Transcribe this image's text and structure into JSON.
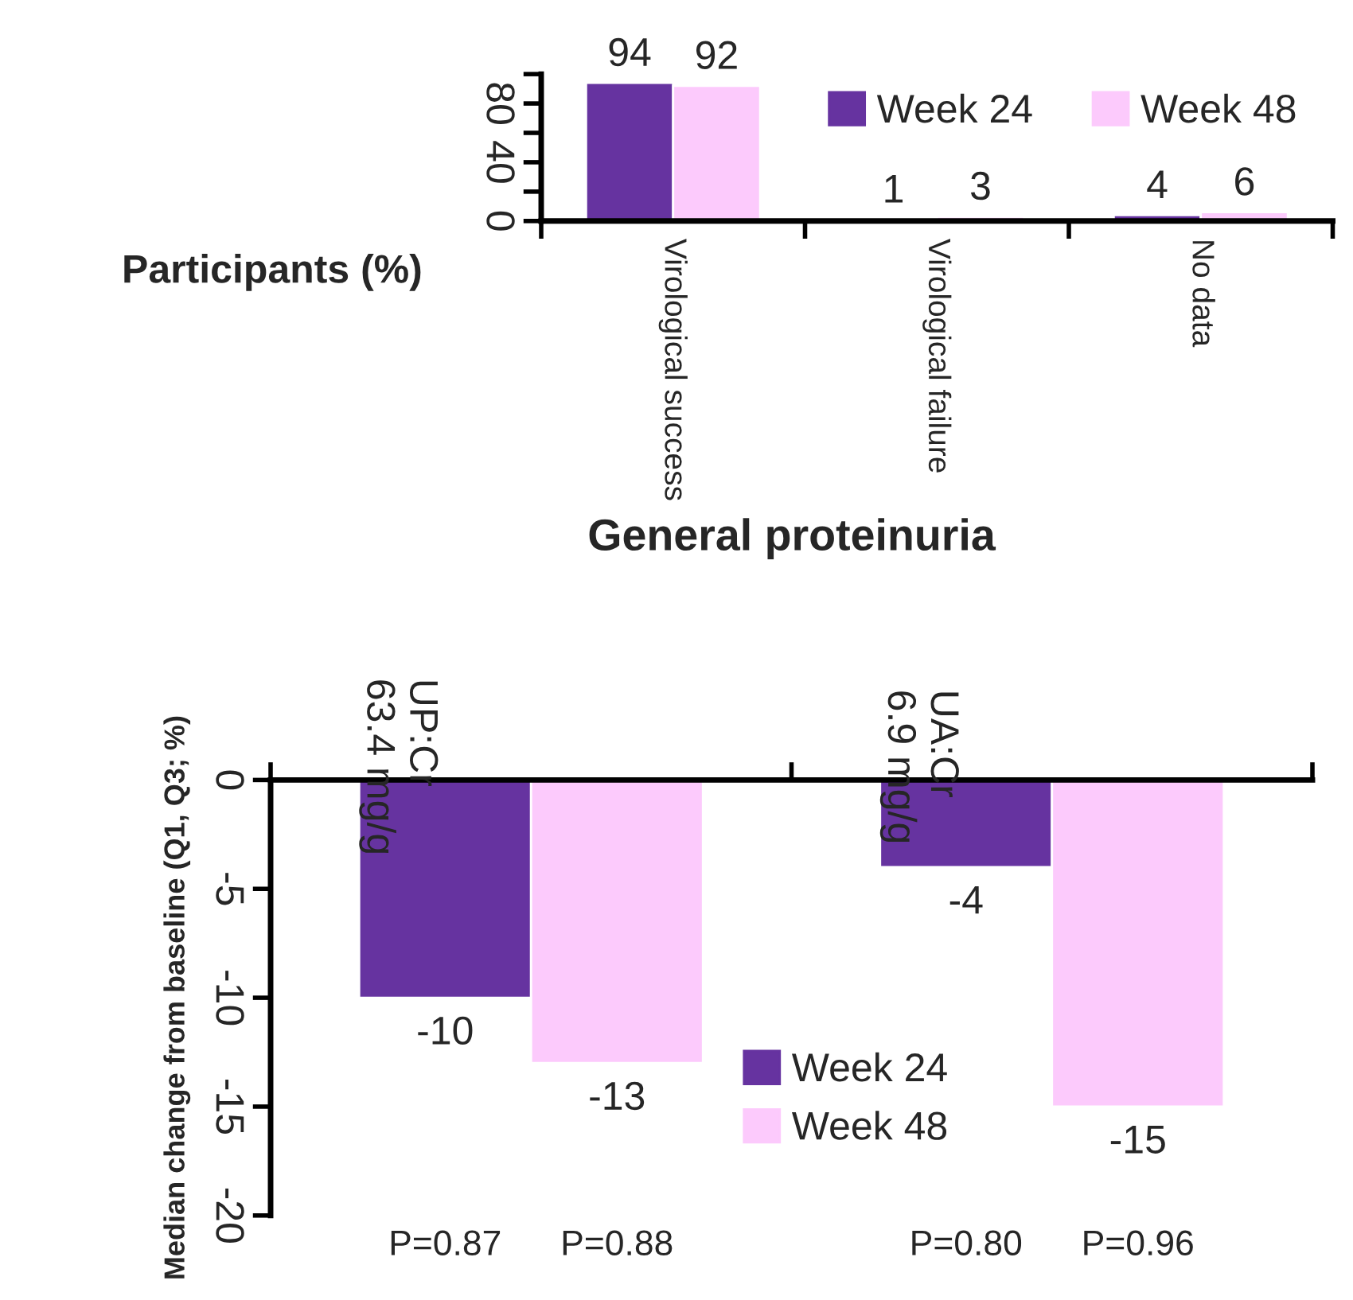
{
  "chart_data": [
    {
      "type": "bar",
      "ylabel": "Participants (%)",
      "categories": [
        "Virological success",
        "Virological failure",
        "No data"
      ],
      "series": [
        {
          "name": "Week 24",
          "color": "#6633a0",
          "values": [
            94,
            1,
            4
          ]
        },
        {
          "name": "Week 48",
          "color": "#fccafc",
          "values": [
            92,
            3,
            6
          ]
        }
      ],
      "ylim": [
        0,
        100
      ],
      "yticks": [
        0,
        {
          "value": 20,
          "label": null
        },
        40,
        {
          "value": 60,
          "label": null
        },
        80,
        {
          "value": 100,
          "label": null
        }
      ],
      "data_labels": true,
      "legend": "top right",
      "grid": false
    },
    {
      "type": "bar",
      "title": "General proteinuria",
      "ylabel": "Median change from baseline (Q1, Q3; %)",
      "categories": [
        "UP:Cr\n63.4 mg/g",
        "UA:Cr\n6.9 mg/g"
      ],
      "series": [
        {
          "name": "Week 24",
          "color": "#6633a0",
          "values": [
            -10,
            -4
          ]
        },
        {
          "name": "Week 48",
          "color": "#fccafc",
          "values": [
            -13,
            -15
          ]
        }
      ],
      "ylim": [
        -20,
        0
      ],
      "yticks": [
        0,
        -5,
        -10,
        -15,
        -20
      ],
      "data_labels": true,
      "legend": "center",
      "grid": false,
      "annotations": [
        "P=0.87",
        "P=0.88",
        "P=0.80",
        "P=0.96"
      ]
    }
  ]
}
